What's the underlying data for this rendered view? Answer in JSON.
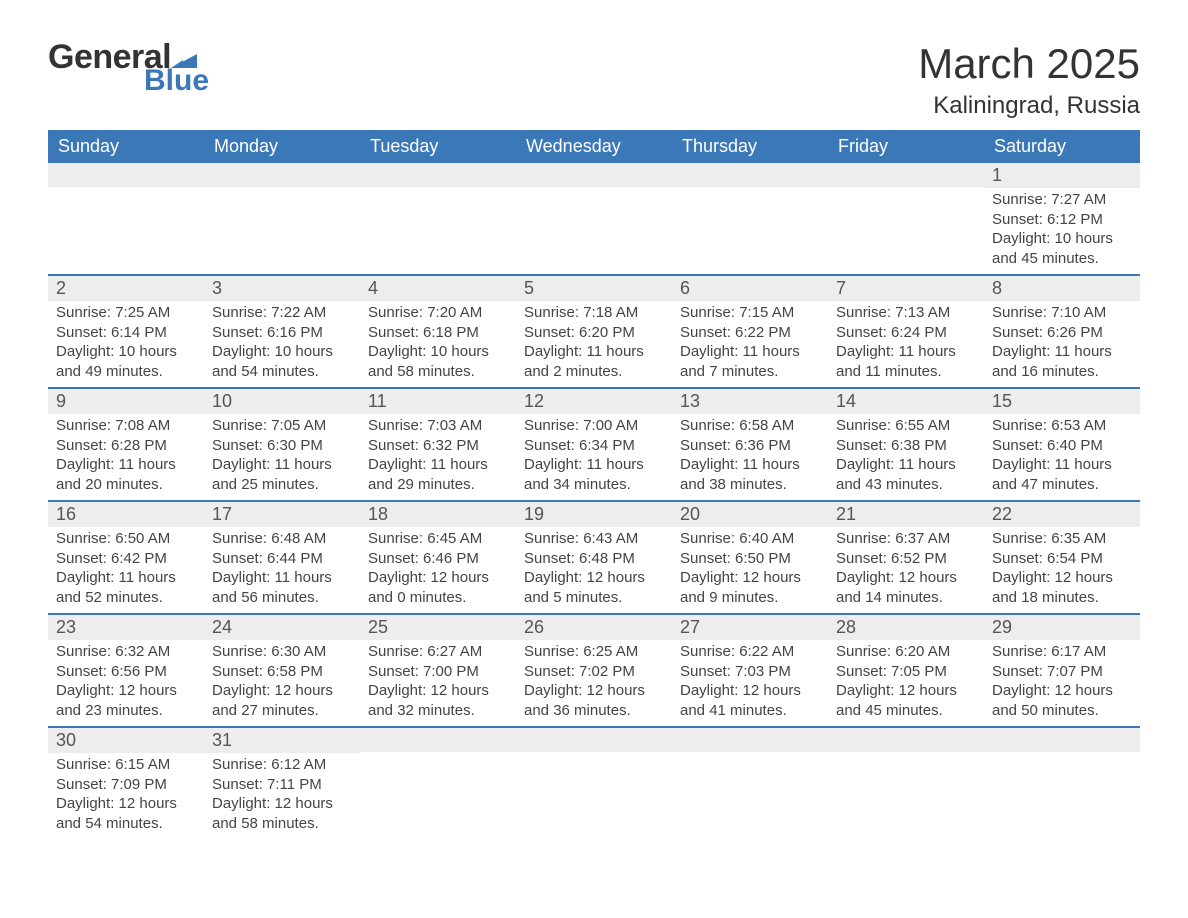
{
  "brand": {
    "name_part1": "General",
    "name_part2": "Blue",
    "color_primary": "#3a78b8",
    "color_text": "#333333"
  },
  "title": "March 2025",
  "location": "Kaliningrad, Russia",
  "header_bg": "#3a78b8",
  "header_fg": "#ffffff",
  "daybar_bg": "#ededed",
  "row_border": "#3a78b8",
  "body_text_color": "#444444",
  "title_fontsize": 42,
  "location_fontsize": 24,
  "dayheader_fontsize": 18,
  "body_fontsize": 15,
  "day_headers": [
    "Sunday",
    "Monday",
    "Tuesday",
    "Wednesday",
    "Thursday",
    "Friday",
    "Saturday"
  ],
  "weeks": [
    [
      {
        "n": "",
        "sr": "",
        "ss": "",
        "d1": "",
        "d2": ""
      },
      {
        "n": "",
        "sr": "",
        "ss": "",
        "d1": "",
        "d2": ""
      },
      {
        "n": "",
        "sr": "",
        "ss": "",
        "d1": "",
        "d2": ""
      },
      {
        "n": "",
        "sr": "",
        "ss": "",
        "d1": "",
        "d2": ""
      },
      {
        "n": "",
        "sr": "",
        "ss": "",
        "d1": "",
        "d2": ""
      },
      {
        "n": "",
        "sr": "",
        "ss": "",
        "d1": "",
        "d2": ""
      },
      {
        "n": "1",
        "sr": "Sunrise: 7:27 AM",
        "ss": "Sunset: 6:12 PM",
        "d1": "Daylight: 10 hours",
        "d2": "and 45 minutes."
      }
    ],
    [
      {
        "n": "2",
        "sr": "Sunrise: 7:25 AM",
        "ss": "Sunset: 6:14 PM",
        "d1": "Daylight: 10 hours",
        "d2": "and 49 minutes."
      },
      {
        "n": "3",
        "sr": "Sunrise: 7:22 AM",
        "ss": "Sunset: 6:16 PM",
        "d1": "Daylight: 10 hours",
        "d2": "and 54 minutes."
      },
      {
        "n": "4",
        "sr": "Sunrise: 7:20 AM",
        "ss": "Sunset: 6:18 PM",
        "d1": "Daylight: 10 hours",
        "d2": "and 58 minutes."
      },
      {
        "n": "5",
        "sr": "Sunrise: 7:18 AM",
        "ss": "Sunset: 6:20 PM",
        "d1": "Daylight: 11 hours",
        "d2": "and 2 minutes."
      },
      {
        "n": "6",
        "sr": "Sunrise: 7:15 AM",
        "ss": "Sunset: 6:22 PM",
        "d1": "Daylight: 11 hours",
        "d2": "and 7 minutes."
      },
      {
        "n": "7",
        "sr": "Sunrise: 7:13 AM",
        "ss": "Sunset: 6:24 PM",
        "d1": "Daylight: 11 hours",
        "d2": "and 11 minutes."
      },
      {
        "n": "8",
        "sr": "Sunrise: 7:10 AM",
        "ss": "Sunset: 6:26 PM",
        "d1": "Daylight: 11 hours",
        "d2": "and 16 minutes."
      }
    ],
    [
      {
        "n": "9",
        "sr": "Sunrise: 7:08 AM",
        "ss": "Sunset: 6:28 PM",
        "d1": "Daylight: 11 hours",
        "d2": "and 20 minutes."
      },
      {
        "n": "10",
        "sr": "Sunrise: 7:05 AM",
        "ss": "Sunset: 6:30 PM",
        "d1": "Daylight: 11 hours",
        "d2": "and 25 minutes."
      },
      {
        "n": "11",
        "sr": "Sunrise: 7:03 AM",
        "ss": "Sunset: 6:32 PM",
        "d1": "Daylight: 11 hours",
        "d2": "and 29 minutes."
      },
      {
        "n": "12",
        "sr": "Sunrise: 7:00 AM",
        "ss": "Sunset: 6:34 PM",
        "d1": "Daylight: 11 hours",
        "d2": "and 34 minutes."
      },
      {
        "n": "13",
        "sr": "Sunrise: 6:58 AM",
        "ss": "Sunset: 6:36 PM",
        "d1": "Daylight: 11 hours",
        "d2": "and 38 minutes."
      },
      {
        "n": "14",
        "sr": "Sunrise: 6:55 AM",
        "ss": "Sunset: 6:38 PM",
        "d1": "Daylight: 11 hours",
        "d2": "and 43 minutes."
      },
      {
        "n": "15",
        "sr": "Sunrise: 6:53 AM",
        "ss": "Sunset: 6:40 PM",
        "d1": "Daylight: 11 hours",
        "d2": "and 47 minutes."
      }
    ],
    [
      {
        "n": "16",
        "sr": "Sunrise: 6:50 AM",
        "ss": "Sunset: 6:42 PM",
        "d1": "Daylight: 11 hours",
        "d2": "and 52 minutes."
      },
      {
        "n": "17",
        "sr": "Sunrise: 6:48 AM",
        "ss": "Sunset: 6:44 PM",
        "d1": "Daylight: 11 hours",
        "d2": "and 56 minutes."
      },
      {
        "n": "18",
        "sr": "Sunrise: 6:45 AM",
        "ss": "Sunset: 6:46 PM",
        "d1": "Daylight: 12 hours",
        "d2": "and 0 minutes."
      },
      {
        "n": "19",
        "sr": "Sunrise: 6:43 AM",
        "ss": "Sunset: 6:48 PM",
        "d1": "Daylight: 12 hours",
        "d2": "and 5 minutes."
      },
      {
        "n": "20",
        "sr": "Sunrise: 6:40 AM",
        "ss": "Sunset: 6:50 PM",
        "d1": "Daylight: 12 hours",
        "d2": "and 9 minutes."
      },
      {
        "n": "21",
        "sr": "Sunrise: 6:37 AM",
        "ss": "Sunset: 6:52 PM",
        "d1": "Daylight: 12 hours",
        "d2": "and 14 minutes."
      },
      {
        "n": "22",
        "sr": "Sunrise: 6:35 AM",
        "ss": "Sunset: 6:54 PM",
        "d1": "Daylight: 12 hours",
        "d2": "and 18 minutes."
      }
    ],
    [
      {
        "n": "23",
        "sr": "Sunrise: 6:32 AM",
        "ss": "Sunset: 6:56 PM",
        "d1": "Daylight: 12 hours",
        "d2": "and 23 minutes."
      },
      {
        "n": "24",
        "sr": "Sunrise: 6:30 AM",
        "ss": "Sunset: 6:58 PM",
        "d1": "Daylight: 12 hours",
        "d2": "and 27 minutes."
      },
      {
        "n": "25",
        "sr": "Sunrise: 6:27 AM",
        "ss": "Sunset: 7:00 PM",
        "d1": "Daylight: 12 hours",
        "d2": "and 32 minutes."
      },
      {
        "n": "26",
        "sr": "Sunrise: 6:25 AM",
        "ss": "Sunset: 7:02 PM",
        "d1": "Daylight: 12 hours",
        "d2": "and 36 minutes."
      },
      {
        "n": "27",
        "sr": "Sunrise: 6:22 AM",
        "ss": "Sunset: 7:03 PM",
        "d1": "Daylight: 12 hours",
        "d2": "and 41 minutes."
      },
      {
        "n": "28",
        "sr": "Sunrise: 6:20 AM",
        "ss": "Sunset: 7:05 PM",
        "d1": "Daylight: 12 hours",
        "d2": "and 45 minutes."
      },
      {
        "n": "29",
        "sr": "Sunrise: 6:17 AM",
        "ss": "Sunset: 7:07 PM",
        "d1": "Daylight: 12 hours",
        "d2": "and 50 minutes."
      }
    ],
    [
      {
        "n": "30",
        "sr": "Sunrise: 6:15 AM",
        "ss": "Sunset: 7:09 PM",
        "d1": "Daylight: 12 hours",
        "d2": "and 54 minutes."
      },
      {
        "n": "31",
        "sr": "Sunrise: 6:12 AM",
        "ss": "Sunset: 7:11 PM",
        "d1": "Daylight: 12 hours",
        "d2": "and 58 minutes."
      },
      {
        "n": "",
        "sr": "",
        "ss": "",
        "d1": "",
        "d2": ""
      },
      {
        "n": "",
        "sr": "",
        "ss": "",
        "d1": "",
        "d2": ""
      },
      {
        "n": "",
        "sr": "",
        "ss": "",
        "d1": "",
        "d2": ""
      },
      {
        "n": "",
        "sr": "",
        "ss": "",
        "d1": "",
        "d2": ""
      },
      {
        "n": "",
        "sr": "",
        "ss": "",
        "d1": "",
        "d2": ""
      }
    ]
  ]
}
